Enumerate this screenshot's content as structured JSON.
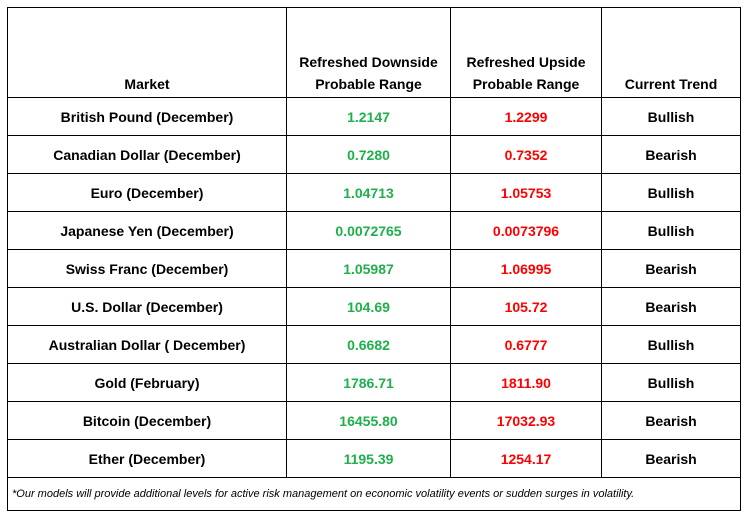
{
  "header": {
    "market": "Market",
    "downside": "Refreshed Downside Probable Range",
    "upside": "Refreshed Upside Probable Range",
    "trend": "Current Trend"
  },
  "rows": [
    {
      "market": "British Pound (December)",
      "downside": "1.2147",
      "upside": "1.2299",
      "trend": "Bullish"
    },
    {
      "market": "Canadian Dollar (December)",
      "downside": "0.7280",
      "upside": "0.7352",
      "trend": "Bearish"
    },
    {
      "market": "Euro (December)",
      "downside": "1.04713",
      "upside": "1.05753",
      "trend": "Bullish"
    },
    {
      "market": "Japanese Yen (December)",
      "downside": "0.0072765",
      "upside": "0.0073796",
      "trend": "Bullish"
    },
    {
      "market": "Swiss Franc (December)",
      "downside": "1.05987",
      "upside": "1.06995",
      "trend": "Bearish"
    },
    {
      "market": "U.S. Dollar (December)",
      "downside": "104.69",
      "upside": "105.72",
      "trend": "Bearish"
    },
    {
      "market": "Australian Dollar ( December)",
      "downside": "0.6682",
      "upside": "0.6777",
      "trend": "Bullish"
    },
    {
      "market": "Gold (February)",
      "downside": "1786.71",
      "upside": "1811.90",
      "trend": "Bullish"
    },
    {
      "market": "Bitcoin (December)",
      "downside": "16455.80",
      "upside": "17032.93",
      "trend": "Bearish"
    },
    {
      "market": "Ether (December)",
      "downside": "1195.39",
      "upside": "1254.17",
      "trend": "Bearish"
    }
  ],
  "footnote": "*Our models will provide additional levels for active risk management on economic volatility events or sudden surges in volatility.",
  "colors": {
    "downside": "#1faf4b",
    "upside": "#ff0000"
  }
}
